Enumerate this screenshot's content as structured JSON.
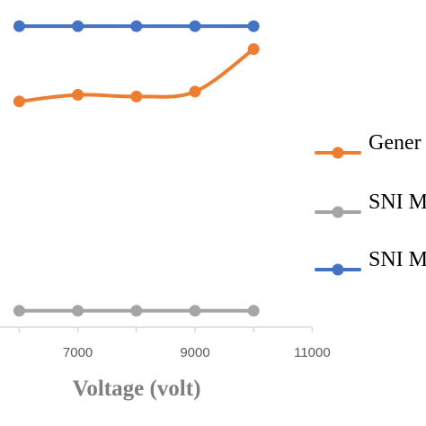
{
  "chart_data": {
    "type": "line",
    "xlabel": "Voltage (volt)",
    "xlim": [
      6000,
      11000
    ],
    "x_ticks": [
      "7000",
      "9000",
      "11000"
    ],
    "x": [
      6000,
      7000,
      8000,
      9000,
      10000
    ],
    "ylim": [
      0,
      1
    ],
    "grid": false,
    "legend_position": "right",
    "series": [
      {
        "name": "Gener",
        "color": "#ED7D31",
        "values": [
          0.69,
          0.71,
          0.705,
          0.72,
          0.85
        ]
      },
      {
        "name": "SNI M",
        "color": "#A5A5A5",
        "values": [
          0.05,
          0.05,
          0.05,
          0.05,
          0.05
        ]
      },
      {
        "name": "SNI M",
        "color": "#4472C4",
        "values": [
          0.92,
          0.92,
          0.92,
          0.92,
          0.92
        ]
      }
    ]
  }
}
